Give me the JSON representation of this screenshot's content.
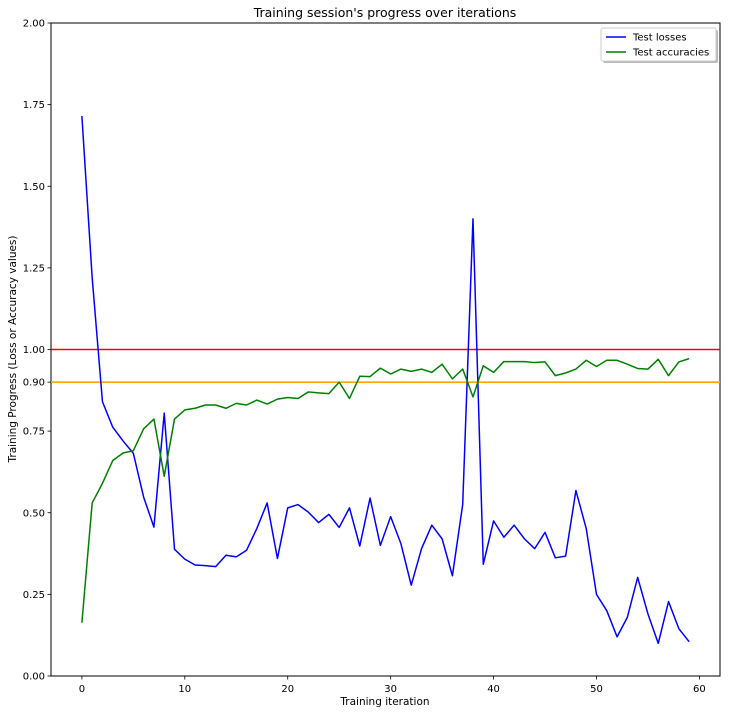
{
  "chart_data": {
    "type": "line",
    "title": "Training session's progress over iterations",
    "xlabel": "Training iteration",
    "ylabel": "Training Progress (Loss or Accuracy values)",
    "xlim": [
      -3,
      62
    ],
    "ylim": [
      0,
      2
    ],
    "xticks": [
      0,
      10,
      20,
      30,
      40,
      50,
      60
    ],
    "xtick_labels": [
      "0",
      "10",
      "20",
      "30",
      "40",
      "50",
      "60"
    ],
    "yticks": [
      0,
      0.25,
      0.5,
      0.75,
      0.9,
      1.0,
      1.25,
      1.5,
      1.75,
      2.0
    ],
    "ytick_labels": [
      "0.00",
      "0.25",
      "0.50",
      "0.75",
      "0.90",
      "1.00",
      "1.25",
      "1.50",
      "1.75",
      "2.00"
    ],
    "grid": false,
    "legend_position": "top-right",
    "series": [
      {
        "name": "Test losses",
        "color": "#0000ff",
        "x": [
          0,
          1,
          2,
          3,
          4,
          5,
          6,
          7,
          8,
          9,
          10,
          11,
          12,
          13,
          14,
          15,
          16,
          17,
          18,
          19,
          20,
          21,
          22,
          23,
          24,
          25,
          26,
          27,
          28,
          29,
          30,
          31,
          32,
          33,
          34,
          35,
          36,
          37,
          38,
          39,
          40,
          41,
          42,
          43,
          44,
          45,
          46,
          47,
          48,
          49,
          50,
          51,
          52,
          53,
          54,
          55,
          56,
          57,
          58,
          59
        ],
        "values": [
          1.715,
          1.22,
          0.84,
          0.762,
          0.72,
          0.682,
          0.548,
          0.456,
          0.805,
          0.388,
          0.358,
          0.34,
          0.338,
          0.335,
          0.37,
          0.365,
          0.385,
          0.452,
          0.53,
          0.36,
          0.515,
          0.525,
          0.502,
          0.47,
          0.495,
          0.455,
          0.515,
          0.398,
          0.545,
          0.4,
          0.488,
          0.405,
          0.278,
          0.39,
          0.462,
          0.42,
          0.307,
          0.525,
          1.4,
          0.342,
          0.475,
          0.425,
          0.462,
          0.42,
          0.39,
          0.44,
          0.362,
          0.367,
          0.568,
          0.452,
          0.25,
          0.2,
          0.12,
          0.18,
          0.302,
          0.19,
          0.1,
          0.228,
          0.145,
          0.105
        ]
      },
      {
        "name": "Test accuracies",
        "color": "#008000",
        "x": [
          0,
          1,
          2,
          3,
          4,
          5,
          6,
          7,
          8,
          9,
          10,
          11,
          12,
          13,
          14,
          15,
          16,
          17,
          18,
          19,
          20,
          21,
          22,
          23,
          24,
          25,
          26,
          27,
          28,
          29,
          30,
          31,
          32,
          33,
          34,
          35,
          36,
          37,
          38,
          39,
          40,
          41,
          42,
          43,
          44,
          45,
          46,
          47,
          48,
          49,
          50,
          51,
          52,
          53,
          54,
          55,
          56,
          57,
          58,
          59
        ],
        "values": [
          0.163,
          0.53,
          0.59,
          0.66,
          0.683,
          0.69,
          0.757,
          0.787,
          0.612,
          0.787,
          0.815,
          0.82,
          0.83,
          0.83,
          0.82,
          0.835,
          0.83,
          0.845,
          0.833,
          0.848,
          0.853,
          0.85,
          0.87,
          0.867,
          0.865,
          0.9,
          0.85,
          0.918,
          0.917,
          0.943,
          0.925,
          0.94,
          0.933,
          0.94,
          0.93,
          0.955,
          0.91,
          0.94,
          0.855,
          0.95,
          0.93,
          0.963,
          0.963,
          0.963,
          0.96,
          0.962,
          0.92,
          0.928,
          0.94,
          0.967,
          0.948,
          0.967,
          0.967,
          0.955,
          0.942,
          0.94,
          0.97,
          0.92,
          0.962,
          0.972
        ]
      }
    ],
    "reference_lines": [
      {
        "y": 1.0,
        "color": "#ff0000"
      },
      {
        "y": 0.9,
        "color": "#ffa500"
      }
    ]
  }
}
